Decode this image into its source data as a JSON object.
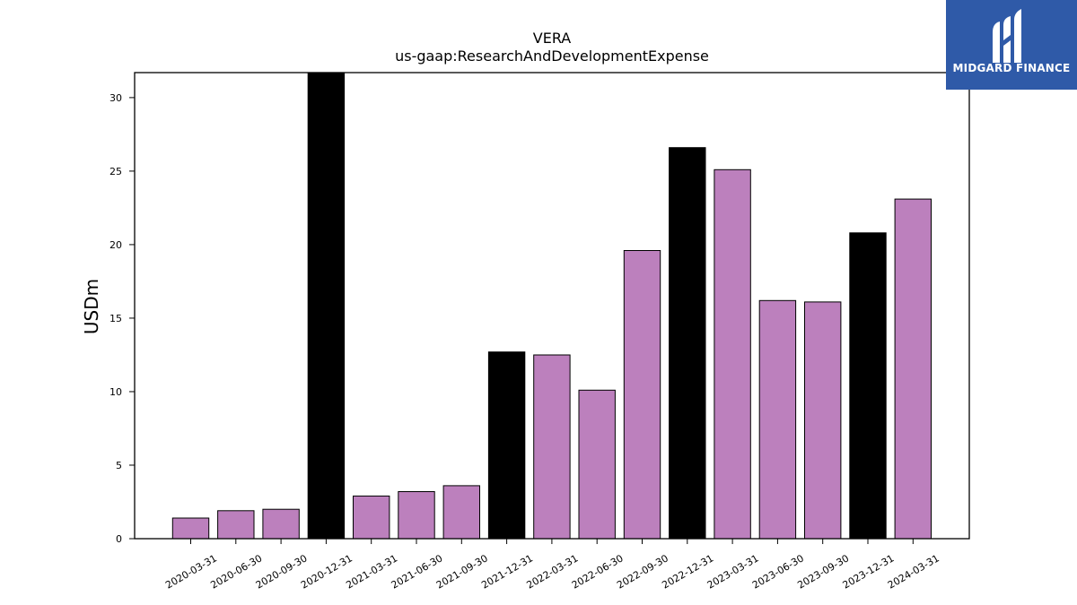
{
  "brand": {
    "name": "MIDGARD FINANCE"
  },
  "colors": {
    "quarter_bar": "#bc80bd",
    "annual_bar": "#000000",
    "logo_bg": "#2f5aa8"
  },
  "chart_data": {
    "type": "bar",
    "title": "VERA",
    "subtitle": "us-gaap:ResearchAndDevelopmentExpense",
    "xlabel": "",
    "ylabel": "USDm",
    "ylim": [
      0,
      31.7
    ],
    "yticks": [
      0,
      5,
      10,
      15,
      20,
      25,
      30
    ],
    "grid": false,
    "categories": [
      "2020-03-31",
      "2020-06-30",
      "2020-09-30",
      "2020-12-31",
      "2021-03-31",
      "2021-06-30",
      "2021-09-30",
      "2021-12-31",
      "2022-03-31",
      "2022-06-30",
      "2022-09-30",
      "2022-12-31",
      "2023-03-31",
      "2023-06-30",
      "2023-09-30",
      "2023-12-31",
      "2024-03-31"
    ],
    "values": [
      1.4,
      1.9,
      2.0,
      31.7,
      2.9,
      3.2,
      3.6,
      12.7,
      12.5,
      10.1,
      19.6,
      26.6,
      25.1,
      16.2,
      16.1,
      20.8,
      23.1
    ],
    "bar_colors": [
      "#bc80bd",
      "#bc80bd",
      "#bc80bd",
      "#000000",
      "#bc80bd",
      "#bc80bd",
      "#bc80bd",
      "#000000",
      "#bc80bd",
      "#bc80bd",
      "#bc80bd",
      "#000000",
      "#bc80bd",
      "#bc80bd",
      "#bc80bd",
      "#000000",
      "#bc80bd"
    ]
  }
}
